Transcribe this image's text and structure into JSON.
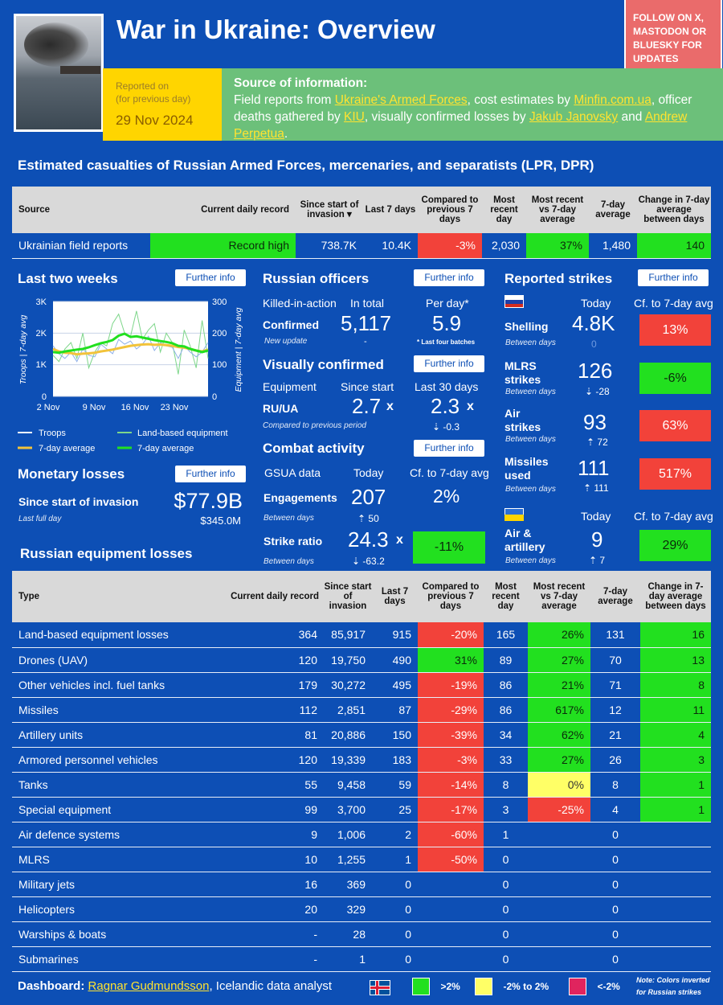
{
  "header": {
    "title": "War in Ukraine: Overview",
    "follow": "FOLLOW ON X, MASTODON OR BLUESKY FOR UPDATES",
    "reported_on": "Reported on",
    "reported_note": "(for previous day)",
    "date": "29 Nov 2024",
    "source_heading": "Source of information:",
    "source_parts": {
      "t1": "Field reports from ",
      "l1": "Ukraine's Armed Forces",
      "t2": ", cost estimates by ",
      "l2": "Minfin.com.ua",
      "t3": ", officer deaths gathered by ",
      "l3": "KIU",
      "t4": ", visually confirmed losses by ",
      "l4": "Jakub Janovsky",
      "t5": " and ",
      "l5": "Andrew Perpetua",
      "t6": "."
    }
  },
  "casualties": {
    "title": "Estimated casualties of Russian Armed Forces, mercenaries, and separatists (LPR, DPR)",
    "headers": [
      "Source",
      "Current daily record",
      "Since start of invasion",
      "Last 7 days",
      "Compared to previous 7 days",
      "Most recent day",
      "Most recent vs 7-day average",
      "7-day average",
      "Change in 7-day average between days"
    ],
    "sort_arrow": "▾",
    "row": {
      "source": "Ukrainian field reports",
      "record": "Record high",
      "since": "738.7K",
      "last7": "10.4K",
      "compared": "-3%",
      "recent": "2,030",
      "vs_avg": "37%",
      "avg7": "1,480",
      "change": "140"
    }
  },
  "last_two_weeks": {
    "title": "Last two weeks",
    "button": "Further info",
    "y_left_label": "Troops | 7-day avg",
    "y_right_label": "Equipment | 7-day avg",
    "y_left_ticks": [
      "3K",
      "2K",
      "1K",
      "0"
    ],
    "y_right_ticks": [
      "300",
      "200",
      "100",
      "0"
    ],
    "x_ticks": [
      "2 Nov",
      "9 Nov",
      "16 Nov",
      "23 Nov"
    ],
    "legend": [
      "Troops",
      "Land-based equipment",
      "7-day average",
      "7-day average"
    ],
    "colors": {
      "troops": "#ffffff",
      "troops_avg": "#f2c33a",
      "equip": "#7ed68a",
      "equip_avg": "#22e01f"
    }
  },
  "chart_data": {
    "type": "line",
    "x": [
      "2 Nov",
      "3 Nov",
      "4 Nov",
      "5 Nov",
      "6 Nov",
      "7 Nov",
      "8 Nov",
      "9 Nov",
      "10 Nov",
      "11 Nov",
      "12 Nov",
      "13 Nov",
      "14 Nov",
      "15 Nov",
      "16 Nov",
      "17 Nov",
      "18 Nov",
      "19 Nov",
      "20 Nov",
      "21 Nov",
      "22 Nov",
      "23 Nov",
      "24 Nov",
      "25 Nov",
      "26 Nov",
      "27 Nov",
      "28 Nov"
    ],
    "series": [
      {
        "name": "Troops",
        "axis": "left",
        "values": [
          1600,
          1350,
          1200,
          1400,
          1100,
          1500,
          1300,
          1250,
          1650,
          1500,
          1350,
          1800,
          1650,
          1750,
          1500,
          1650,
          1900,
          1450,
          1700,
          1600,
          1550,
          1200,
          1600,
          1400,
          1250,
          1400,
          1700
        ]
      },
      {
        "name": "7-day average",
        "axis": "left",
        "values": [
          1500,
          1420,
          1380,
          1370,
          1330,
          1350,
          1360,
          1380,
          1420,
          1450,
          1480,
          1520,
          1560,
          1600,
          1620,
          1640,
          1650,
          1630,
          1640,
          1620,
          1600,
          1560,
          1540,
          1500,
          1450,
          1420,
          1480
        ]
      },
      {
        "name": "Land-based equipment",
        "axis": "right",
        "values": [
          130,
          110,
          150,
          170,
          120,
          200,
          90,
          140,
          170,
          160,
          230,
          260,
          200,
          190,
          270,
          180,
          210,
          230,
          140,
          200,
          170,
          70,
          210,
          160,
          90,
          240,
          120
        ]
      },
      {
        "name": "7-day average",
        "axis": "right",
        "values": [
          140,
          138,
          142,
          145,
          148,
          150,
          155,
          162,
          168,
          172,
          178,
          192,
          198,
          188,
          190,
          186,
          182,
          178,
          175,
          172,
          168,
          160,
          158,
          150,
          145,
          140,
          145
        ]
      }
    ],
    "ylim_left": [
      0,
      3000
    ],
    "ylim_right": [
      0,
      300
    ],
    "grid": true
  },
  "officers": {
    "title": "Russian officers",
    "button": "Further info",
    "col1": "Killed-in-action",
    "col2": "In total",
    "col3": "Per day*",
    "confirmed": "Confirmed",
    "total": "5,117",
    "per_day": "5.9",
    "new_update": "New update",
    "dash": "-",
    "note": "* Last four batches"
  },
  "visual": {
    "title": "Visually confirmed",
    "button": "Further info",
    "col1": "Equipment",
    "col2": "Since start",
    "col3": "Last 30 days",
    "ru_ua": "RU/UA",
    "since": "2.7",
    "last30": "2.3",
    "x": "x",
    "note": "Compared to previous period",
    "delta": "⇣ -0.3"
  },
  "combat": {
    "title": "Combat activity",
    "button": "Further info",
    "col1": "GSUA data",
    "col2": "Today",
    "col3": "Cf. to 7-day avg",
    "engagements": "Engagements",
    "eng_val": "207",
    "eng_cf": "2%",
    "between": "Between days",
    "eng_delta": "⇡ 50",
    "strike_ratio": "Strike ratio",
    "sr_val": "24.3",
    "x": "x",
    "sr_cf": "-11%",
    "sr_delta": "⇣ -63.2"
  },
  "strikes": {
    "title": "Reported strikes",
    "button": "Further info",
    "today": "Today",
    "cf": "Cf. to 7-day avg",
    "between": "Between days",
    "shelling": {
      "label": "Shelling",
      "val": "4.8K",
      "delta": "0",
      "cf": "13%"
    },
    "mlrs": {
      "label": "MLRS strikes",
      "val": "126",
      "delta": "⇣ -28",
      "cf": "-6%"
    },
    "air": {
      "label": "Air strikes",
      "val": "93",
      "delta": "⇡ 72",
      "cf": "63%"
    },
    "missiles": {
      "label": "Missiles used",
      "val": "111",
      "delta": "⇡ 111",
      "cf": "517%"
    },
    "ua": {
      "label": "Air & artillery",
      "val": "9",
      "delta": "⇡ 7",
      "cf": "29%"
    }
  },
  "monetary": {
    "title": "Monetary losses",
    "button": "Further info",
    "since": "Since start of invasion",
    "value": "$77.9B",
    "last_full_day": "Last full day",
    "day_value": "$345.0M"
  },
  "equipment": {
    "title": "Russian equipment losses",
    "headers": [
      "Type",
      "Current daily record",
      "Since start of invasion",
      "Last 7 days",
      "Compared to previous 7 days",
      "Most recent day",
      "Most recent vs 7-day average",
      "7-day average",
      "Change in 7-day average between days"
    ],
    "rows": [
      {
        "type": "Land-based equipment losses",
        "record": "364",
        "since": "85,917",
        "last7": "915",
        "cmp": "-20%",
        "cmpc": "r",
        "recent": "165",
        "vs": "26%",
        "vsc": "g",
        "avg": "131",
        "chg": "16",
        "chgc": "g"
      },
      {
        "type": "Drones (UAV)",
        "record": "120",
        "since": "19,750",
        "last7": "490",
        "cmp": "31%",
        "cmpc": "g",
        "recent": "89",
        "vs": "27%",
        "vsc": "g",
        "avg": "70",
        "chg": "13",
        "chgc": "g"
      },
      {
        "type": "Other vehicles incl. fuel tanks",
        "record": "179",
        "since": "30,272",
        "last7": "495",
        "cmp": "-19%",
        "cmpc": "r",
        "recent": "86",
        "vs": "21%",
        "vsc": "g",
        "avg": "71",
        "chg": "8",
        "chgc": "g"
      },
      {
        "type": "Missiles",
        "record": "112",
        "since": "2,851",
        "last7": "87",
        "cmp": "-29%",
        "cmpc": "r",
        "recent": "86",
        "vs": "617%",
        "vsc": "g",
        "avg": "12",
        "chg": "11",
        "chgc": "g"
      },
      {
        "type": "Artillery units",
        "record": "81",
        "since": "20,886",
        "last7": "150",
        "cmp": "-39%",
        "cmpc": "r",
        "recent": "34",
        "vs": "62%",
        "vsc": "g",
        "avg": "21",
        "chg": "4",
        "chgc": "g"
      },
      {
        "type": "Armored personnel vehicles",
        "record": "120",
        "since": "19,339",
        "last7": "183",
        "cmp": "-3%",
        "cmpc": "r",
        "recent": "33",
        "vs": "27%",
        "vsc": "g",
        "avg": "26",
        "chg": "3",
        "chgc": "g"
      },
      {
        "type": "Tanks",
        "record": "55",
        "since": "9,458",
        "last7": "59",
        "cmp": "-14%",
        "cmpc": "r",
        "recent": "8",
        "vs": "0%",
        "vsc": "y",
        "avg": "8",
        "chg": "1",
        "chgc": "g"
      },
      {
        "type": "Special equipment",
        "record": "99",
        "since": "3,700",
        "last7": "25",
        "cmp": "-17%",
        "cmpc": "r",
        "recent": "3",
        "vs": "-25%",
        "vsc": "r",
        "avg": "4",
        "chg": "1",
        "chgc": "g"
      },
      {
        "type": "Air defence systems",
        "record": "9",
        "since": "1,006",
        "last7": "2",
        "cmp": "-60%",
        "cmpc": "r",
        "recent": "1",
        "vs": "",
        "vsc": "",
        "avg": "0",
        "chg": "",
        "chgc": ""
      },
      {
        "type": "MLRS",
        "record": "10",
        "since": "1,255",
        "last7": "1",
        "cmp": "-50%",
        "cmpc": "r",
        "recent": "0",
        "vs": "",
        "vsc": "",
        "avg": "0",
        "chg": "",
        "chgc": ""
      },
      {
        "type": "Military jets",
        "record": "16",
        "since": "369",
        "last7": "0",
        "cmp": "",
        "cmpc": "",
        "recent": "0",
        "vs": "",
        "vsc": "",
        "avg": "0",
        "chg": "",
        "chgc": ""
      },
      {
        "type": "Helicopters",
        "record": "20",
        "since": "329",
        "last7": "0",
        "cmp": "",
        "cmpc": "",
        "recent": "0",
        "vs": "",
        "vsc": "",
        "avg": "0",
        "chg": "",
        "chgc": ""
      },
      {
        "type": "Warships & boats",
        "record": "-",
        "since": "28",
        "last7": "0",
        "cmp": "",
        "cmpc": "",
        "recent": "0",
        "vs": "",
        "vsc": "",
        "avg": "0",
        "chg": "",
        "chgc": ""
      },
      {
        "type": "Submarines",
        "record": "-",
        "since": "1",
        "last7": "0",
        "cmp": "",
        "cmpc": "",
        "recent": "0",
        "vs": "",
        "vsc": "",
        "avg": "0",
        "chg": "",
        "chgc": ""
      }
    ]
  },
  "footer": {
    "dashboard": "Dashboard:",
    "author": "Ragnar Gudmundsson",
    "role": ", Icelandic data analyst",
    "legend": [
      ">2%",
      "-2% to 2%",
      "<-2%"
    ],
    "note": "Note: Colors inverted for Russian strikes",
    "colors": {
      "green": "#22e01f",
      "yellow": "#ffff66",
      "red": "#e0245e"
    }
  }
}
